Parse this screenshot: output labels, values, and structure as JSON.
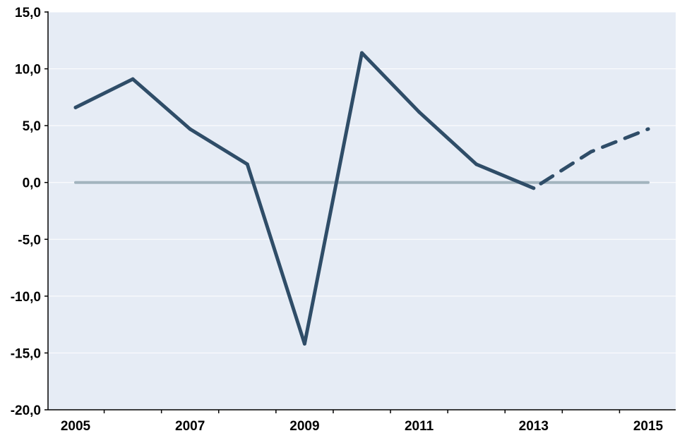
{
  "chart_data": {
    "type": "line",
    "title": "",
    "xlabel": "",
    "ylabel": "",
    "ylim": [
      -20,
      15
    ],
    "y_ticks": [
      15,
      10,
      5,
      0,
      -5,
      -10,
      -15,
      -20
    ],
    "y_tick_labels": [
      "15,0",
      "10,0",
      "5,0",
      "0,0",
      "-5,0",
      "-10,0",
      "-15,0",
      "-20,0"
    ],
    "x_tick_labels": [
      "2005",
      "2007",
      "2009",
      "2011",
      "2013",
      "2015"
    ],
    "x": [
      2005,
      2006,
      2007,
      2008,
      2009,
      2010,
      2011,
      2012,
      2013,
      2014,
      2015
    ],
    "grid": true,
    "legend": "none",
    "series": [
      {
        "values": [
          6.6,
          9.1,
          4.7,
          1.6,
          -14.2,
          11.4,
          6.2,
          1.6,
          -0.5,
          2.7,
          4.7
        ],
        "solid_through": 2013,
        "forecast_from": 2013,
        "color": "#2f4d68"
      },
      {
        "values": [
          0,
          0,
          0,
          0,
          0,
          0,
          0,
          0,
          0,
          0,
          0
        ],
        "color": "#a3b4be"
      }
    ],
    "plot_background": "#e6ecf5",
    "gridline_color": "#ffffff"
  }
}
